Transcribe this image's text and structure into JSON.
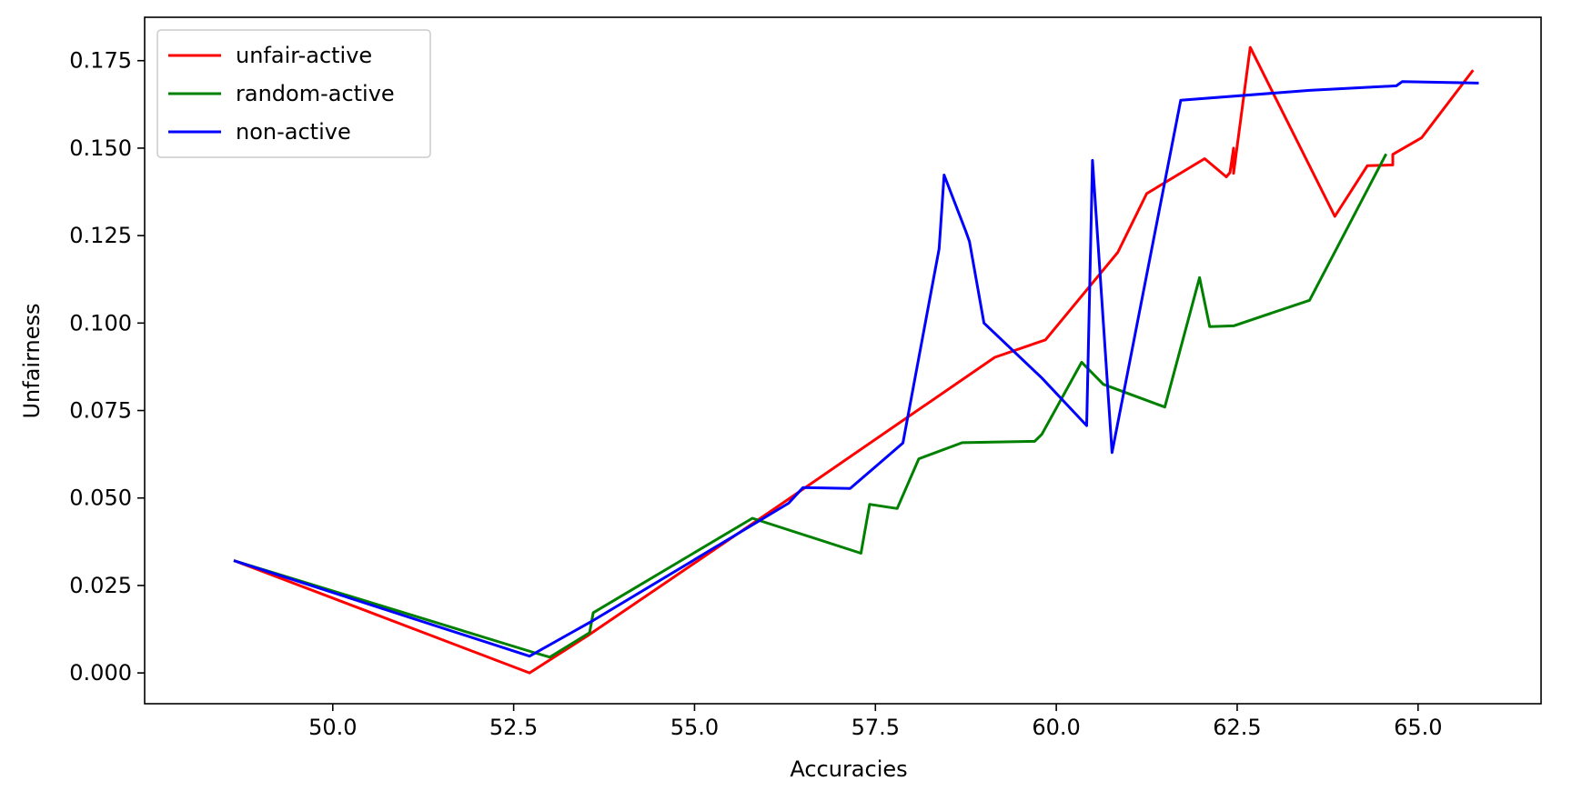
{
  "chart_data": {
    "type": "line",
    "title": "",
    "xlabel": "Accuracies",
    "ylabel": "Unfairness",
    "xlim": [
      47.4,
      66.7
    ],
    "ylim": [
      -0.0088,
      0.1874
    ],
    "xticks": [
      50.0,
      52.5,
      55.0,
      57.5,
      60.0,
      62.5,
      65.0
    ],
    "xtick_labels": [
      "50.0",
      "52.5",
      "55.0",
      "57.5",
      "60.0",
      "62.5",
      "65.0"
    ],
    "yticks": [
      0.0,
      0.025,
      0.05,
      0.075,
      0.1,
      0.125,
      0.15,
      0.175
    ],
    "ytick_labels": [
      "0.000",
      "0.025",
      "0.050",
      "0.075",
      "0.100",
      "0.125",
      "0.150",
      "0.175"
    ],
    "grid": false,
    "legend_position": "top-left",
    "series": [
      {
        "name": "unfair-active",
        "color": "#ff0000",
        "points": [
          [
            48.65,
            0.032
          ],
          [
            52.72,
            0.0
          ],
          [
            53.55,
            0.011
          ],
          [
            56.25,
            0.049
          ],
          [
            59.15,
            0.0902
          ],
          [
            59.85,
            0.0952
          ],
          [
            60.85,
            0.1202
          ],
          [
            61.25,
            0.137
          ],
          [
            62.05,
            0.147
          ],
          [
            62.35,
            0.1418
          ],
          [
            62.4,
            0.143
          ],
          [
            62.45,
            0.15
          ],
          [
            62.45,
            0.1428
          ],
          [
            62.68,
            0.1788
          ],
          [
            63.85,
            0.1305
          ],
          [
            64.3,
            0.145
          ],
          [
            64.65,
            0.1452
          ],
          [
            64.65,
            0.1482
          ],
          [
            65.05,
            0.153
          ],
          [
            65.75,
            0.172
          ]
        ]
      },
      {
        "name": "random-active",
        "color": "#008000",
        "points": [
          [
            48.65,
            0.032
          ],
          [
            52.75,
            0.006
          ],
          [
            53.0,
            0.0045
          ],
          [
            53.55,
            0.0115
          ],
          [
            53.6,
            0.0172
          ],
          [
            55.8,
            0.0442
          ],
          [
            57.3,
            0.0342
          ],
          [
            57.42,
            0.0482
          ],
          [
            57.8,
            0.047
          ],
          [
            58.1,
            0.0612
          ],
          [
            58.7,
            0.0658
          ],
          [
            59.7,
            0.0662
          ],
          [
            59.8,
            0.0682
          ],
          [
            60.35,
            0.0888
          ],
          [
            60.65,
            0.0825
          ],
          [
            61.5,
            0.076
          ],
          [
            61.98,
            0.113
          ],
          [
            62.12,
            0.099
          ],
          [
            62.45,
            0.0992
          ],
          [
            63.5,
            0.1065
          ],
          [
            64.55,
            0.148
          ]
        ]
      },
      {
        "name": "non-active",
        "color": "#0000ff",
        "points": [
          [
            48.65,
            0.032
          ],
          [
            52.72,
            0.0048
          ],
          [
            53.6,
            0.015
          ],
          [
            56.3,
            0.0485
          ],
          [
            56.5,
            0.053
          ],
          [
            57.15,
            0.0527
          ],
          [
            57.88,
            0.0657
          ],
          [
            58.38,
            0.1212
          ],
          [
            58.45,
            0.1423
          ],
          [
            58.75,
            0.1262
          ],
          [
            58.8,
            0.1233
          ],
          [
            59.0,
            0.1
          ],
          [
            59.8,
            0.0843
          ],
          [
            60.42,
            0.0707
          ],
          [
            60.5,
            0.1465
          ],
          [
            60.77,
            0.063
          ],
          [
            61.72,
            0.1637
          ],
          [
            63.5,
            0.1665
          ],
          [
            64.7,
            0.1678
          ],
          [
            64.78,
            0.169
          ],
          [
            65.82,
            0.1686
          ]
        ]
      }
    ]
  }
}
